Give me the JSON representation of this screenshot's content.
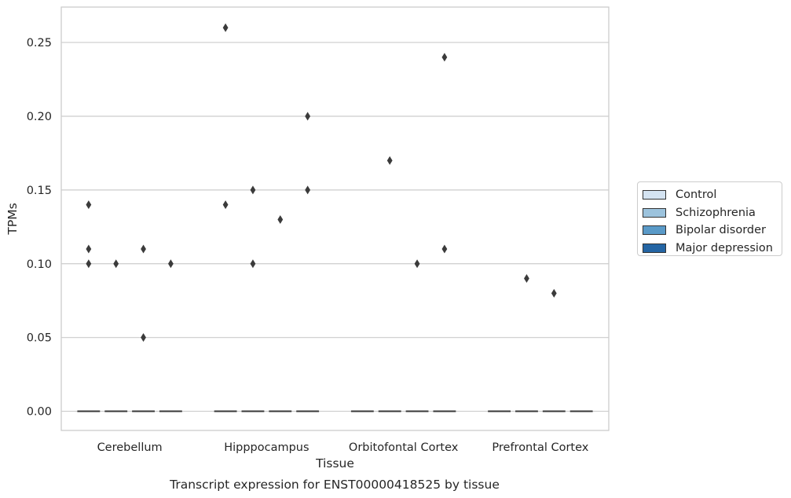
{
  "chart_data": {
    "type": "box",
    "title": "",
    "xlabel": "Tissue",
    "ylabel": "TPMs",
    "caption": "Transcript expression for ENST00000418525 by tissue",
    "categories": [
      "Cerebellum",
      "Hipppocampus",
      "Orbitofontal Cortex",
      "Prefrontal Cortex"
    ],
    "ylim": [
      -0.013,
      0.274
    ],
    "yticks": [
      0.0,
      0.05,
      0.1,
      0.15,
      0.2,
      0.25
    ],
    "ytick_labels": [
      "0.00",
      "0.05",
      "0.10",
      "0.15",
      "0.20",
      "0.25"
    ],
    "grid": true,
    "legend_position": "right",
    "series": [
      {
        "name": "Control",
        "color": "#d4e3f1",
        "median": 0,
        "q1": 0,
        "q3": 0,
        "outliers": {
          "Cerebellum": [
            0.14,
            0.11,
            0.1
          ],
          "Hipppocampus": [
            0.26,
            0.14
          ],
          "Orbitofontal Cortex": [],
          "Prefrontal Cortex": []
        }
      },
      {
        "name": "Schizophrenia",
        "color": "#9cc3dd",
        "median": 0,
        "q1": 0,
        "q3": 0,
        "outliers": {
          "Cerebellum": [
            0.1
          ],
          "Hipppocampus": [
            0.15,
            0.1
          ],
          "Orbitofontal Cortex": [
            0.17
          ],
          "Prefrontal Cortex": [
            0.09
          ]
        }
      },
      {
        "name": "Bipolar disorder",
        "color": "#5a9ac8",
        "median": 0,
        "q1": 0,
        "q3": 0,
        "outliers": {
          "Cerebellum": [
            0.11,
            0.05
          ],
          "Hipppocampus": [
            0.13
          ],
          "Orbitofontal Cortex": [
            0.1
          ],
          "Prefrontal Cortex": [
            0.08
          ]
        }
      },
      {
        "name": "Major depression",
        "color": "#2465a4",
        "median": 0,
        "q1": 0,
        "q3": 0,
        "outliers": {
          "Cerebellum": [
            0.1
          ],
          "Hipppocampus": [
            0.2,
            0.15
          ],
          "Orbitofontal Cortex": [
            0.24,
            0.11
          ],
          "Prefrontal Cortex": []
        }
      }
    ]
  }
}
